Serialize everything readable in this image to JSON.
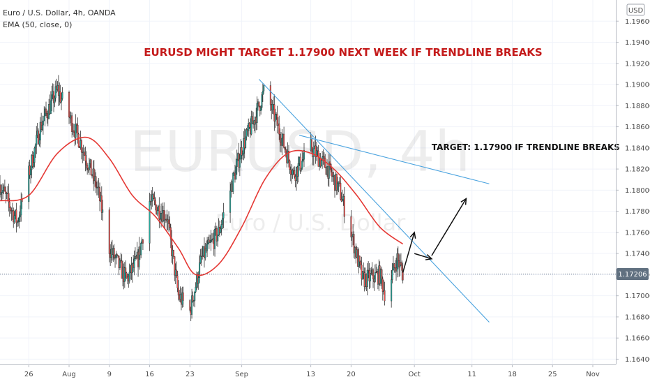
{
  "legend": {
    "symbol_line": "Euro / U.S. Dollar, 4h, OANDA",
    "indicator_line": "EMA (50, close, 0)"
  },
  "currency_button": "USD",
  "watermark": {
    "symbol": "EURUSD, 4h",
    "description": "Euro / U.S. Dollar"
  },
  "colors": {
    "up_candle": "#26a69a",
    "down_candle": "#ef5350",
    "ema": "#e53935",
    "trendline": "#4aa3df",
    "headline": "#c41a1a",
    "price_badge": "#607080"
  },
  "chart_data": {
    "type": "candlestick",
    "title": "EURUSD MIGHT TARGET 1.17900 NEXT WEEK IF TRENDLINE BREAKS",
    "timeframe": "4h",
    "ylim": [
      1.1635,
      1.198
    ],
    "y_ticks": [
      "1.16400",
      "1.16600",
      "1.16800",
      "1.17000",
      "1.17200",
      "1.17400",
      "1.17600",
      "1.17800",
      "1.18000",
      "1.18200",
      "1.18400",
      "1.18600",
      "1.18800",
      "1.19000",
      "1.19200",
      "1.19400",
      "1.19600"
    ],
    "x_ticks": [
      {
        "label": "26",
        "date": "2020-07-26"
      },
      {
        "label": "Aug",
        "date": "2020-08-02"
      },
      {
        "label": "9",
        "date": "2020-08-09"
      },
      {
        "label": "16",
        "date": "2020-08-16"
      },
      {
        "label": "23",
        "date": "2020-08-23"
      },
      {
        "label": "Sep",
        "date": "2020-09-01"
      },
      {
        "label": "13",
        "date": "2020-09-13"
      },
      {
        "label": "20",
        "date": "2020-09-20"
      },
      {
        "label": "Oct",
        "date": "2020-10-01"
      },
      {
        "label": "11",
        "date": "2020-10-11"
      },
      {
        "label": "18",
        "date": "2020-10-18"
      },
      {
        "label": "25",
        "date": "2020-10-25"
      },
      {
        "label": "Nov",
        "date": "2020-11-01"
      }
    ],
    "x_range": [
      "2020-07-21",
      "2020-11-05"
    ],
    "last_price": "1.17206",
    "price_path": [
      {
        "date": "2020-07-21",
        "price": 1.1805
      },
      {
        "date": "2020-07-24",
        "price": 1.177
      },
      {
        "date": "2020-07-28",
        "price": 1.186
      },
      {
        "date": "2020-07-31",
        "price": 1.1895
      },
      {
        "date": "2020-08-04",
        "price": 1.1845
      },
      {
        "date": "2020-08-07",
        "price": 1.18
      },
      {
        "date": "2020-08-09",
        "price": 1.1745
      },
      {
        "date": "2020-08-12",
        "price": 1.1715
      },
      {
        "date": "2020-08-14",
        "price": 1.1735
      },
      {
        "date": "2020-08-16",
        "price": 1.179
      },
      {
        "date": "2020-08-19",
        "price": 1.1775
      },
      {
        "date": "2020-08-21",
        "price": 1.17
      },
      {
        "date": "2020-08-23",
        "price": 1.1685
      },
      {
        "date": "2020-08-25",
        "price": 1.1735
      },
      {
        "date": "2020-08-28",
        "price": 1.176
      },
      {
        "date": "2020-09-01",
        "price": 1.184
      },
      {
        "date": "2020-09-03",
        "price": 1.1865
      },
      {
        "date": "2020-09-05",
        "price": 1.1895
      },
      {
        "date": "2020-09-07",
        "price": 1.1865
      },
      {
        "date": "2020-09-10",
        "price": 1.1815
      },
      {
        "date": "2020-09-13",
        "price": 1.184
      },
      {
        "date": "2020-09-16",
        "price": 1.182
      },
      {
        "date": "2020-09-18",
        "price": 1.18
      },
      {
        "date": "2020-09-20",
        "price": 1.176
      },
      {
        "date": "2020-09-22",
        "price": 1.1715
      },
      {
        "date": "2020-09-25",
        "price": 1.172
      },
      {
        "date": "2020-09-26",
        "price": 1.17
      },
      {
        "date": "2020-09-28",
        "price": 1.1735
      },
      {
        "date": "2020-09-29",
        "price": 1.1721
      }
    ],
    "ema_50": [
      {
        "date": "2020-07-21",
        "price": 1.179
      },
      {
        "date": "2020-07-26",
        "price": 1.1795
      },
      {
        "date": "2020-07-31",
        "price": 1.1835
      },
      {
        "date": "2020-08-05",
        "price": 1.185
      },
      {
        "date": "2020-08-09",
        "price": 1.183
      },
      {
        "date": "2020-08-13",
        "price": 1.1795
      },
      {
        "date": "2020-08-17",
        "price": 1.1775
      },
      {
        "date": "2020-08-21",
        "price": 1.1745
      },
      {
        "date": "2020-08-24",
        "price": 1.172
      },
      {
        "date": "2020-08-28",
        "price": 1.173
      },
      {
        "date": "2020-09-01",
        "price": 1.1765
      },
      {
        "date": "2020-09-05",
        "price": 1.181
      },
      {
        "date": "2020-09-09",
        "price": 1.1835
      },
      {
        "date": "2020-09-13",
        "price": 1.1835
      },
      {
        "date": "2020-09-17",
        "price": 1.182
      },
      {
        "date": "2020-09-21",
        "price": 1.1795
      },
      {
        "date": "2020-09-25",
        "price": 1.1765
      },
      {
        "date": "2020-09-29",
        "price": 1.1749
      }
    ],
    "trendlines": [
      {
        "name": "descending-trendline",
        "from": {
          "date": "2020-09-04",
          "price": 1.1905
        },
        "to": {
          "date": "2020-10-14",
          "price": 1.1675
        }
      },
      {
        "name": "upper-trendline",
        "from": {
          "date": "2020-09-11",
          "price": 1.1852
        },
        "to": {
          "date": "2020-10-14",
          "price": 1.1806
        }
      }
    ],
    "projection_arrows": [
      {
        "from": {
          "date": "2020-09-29",
          "price": 1.1722
        },
        "to": {
          "date": "2020-10-01",
          "price": 1.176
        }
      },
      {
        "from": {
          "date": "2020-10-01",
          "price": 1.174
        },
        "to": {
          "date": "2020-10-04",
          "price": 1.1735
        }
      },
      {
        "from": {
          "date": "2020-10-04",
          "price": 1.1738
        },
        "to": {
          "date": "2020-10-10",
          "price": 1.1792
        }
      }
    ],
    "annotations": [
      {
        "text": "TARGET: 1.17900 IF TRENDLINE BREAKS",
        "date": "2020-10-04",
        "price": 1.1838
      }
    ]
  }
}
